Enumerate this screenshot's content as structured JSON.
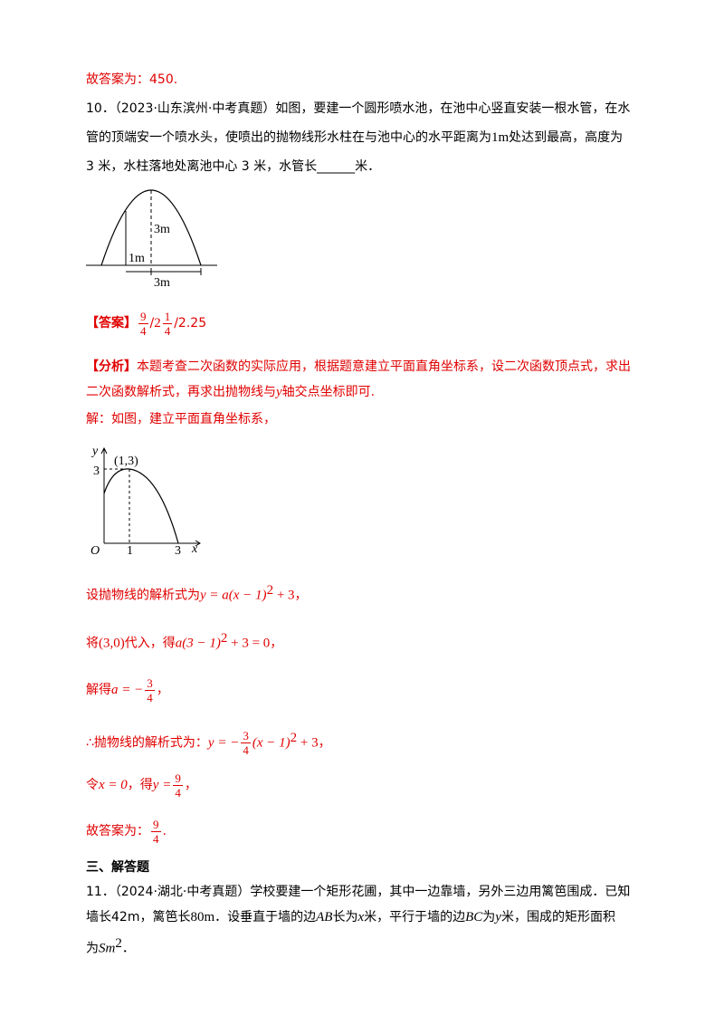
{
  "prev_answer": "故答案为：450.",
  "q10": {
    "stem": [
      [
        "10．（2023·山东滨州·中考真题）如图，要建一个圆形喷水池，在池中心竖直安装一根水管，在水"
      ],
      [
        "管的顶端安一个喷水头，使喷出的抛物线形水柱在与池中心的水平距离为",
        "1m",
        "处达到最高，高度为"
      ],
      [
        "3 米，水柱落地处离池中心 3 米，水管长",
        "______",
        "米．"
      ]
    ],
    "figure_labels": [
      "3m",
      "1m",
      "3m"
    ],
    "answer": {
      "tag": "【答案】",
      "frac1": [
        "9",
        "4"
      ],
      "sep1": "/",
      "whole": "2",
      "frac2": [
        "1",
        "4"
      ],
      "rest": "/2.25"
    },
    "analysis": {
      "tag": "【分析】",
      "lines": [
        [
          "本题考查二次函数的实际应用，根据题意建立平面直角坐标系，设二次函数顶点式，求出"
        ],
        [
          "二次函数解析式，再求出抛物线与",
          "y",
          "轴交点坐标即可."
        ]
      ]
    },
    "solution": {
      "intro": "解：如图，建立平面直角坐标系，",
      "graph": {
        "y_axis": "y",
        "x_axis": "x",
        "origin": "O",
        "vertex": "(1,3)",
        "y_tick": "3",
        "x_ticks": [
          "1",
          "3"
        ]
      },
      "s1": {
        "text": "设抛物线的解析式为",
        "math": "y = a(x − 1)",
        "sup": "2",
        "tail": " + 3",
        "end": "，"
      },
      "s2": {
        "text": "将",
        "point": "(3,0)",
        "mid": "代入，得",
        "math": "a(3 − 1)",
        "sup": "2",
        "tail": " + 3 = 0",
        "end": "，"
      },
      "s3": {
        "text": "解得",
        "math": "a = −",
        "num": "3",
        "den": "4",
        "end": "，"
      },
      "s4": {
        "text": "∴抛物线的解析式为：",
        "math": "y = −",
        "num": "3",
        "den": "4",
        "math2": "(x − 1)",
        "sup": "2",
        "tail": " + 3",
        "end": "，"
      },
      "s5": {
        "text": "令",
        "math": "x = 0",
        "mid": "，得",
        "math2": "y =",
        "num": "9",
        "den": "4",
        "end": "，"
      },
      "s6": {
        "text": "故答案为：",
        "num": "9",
        "den": "4",
        "end": "."
      }
    }
  },
  "section": "三、解答题",
  "q11": {
    "lines": [
      [
        "11．（2024·湖北·中考真题）学校要建一个矩形花圃，其中一边靠墙，另外三边用篱笆围成．已知"
      ],
      [
        "墙长42m，篱笆长",
        "80m",
        "．设垂直于墙的边",
        "AB",
        "长为",
        "x",
        "米，平行于墙的边",
        "BC",
        "为",
        "y",
        "米，围成的矩形面积"
      ],
      [
        "为",
        "Sm",
        "2",
        "．"
      ]
    ]
  }
}
